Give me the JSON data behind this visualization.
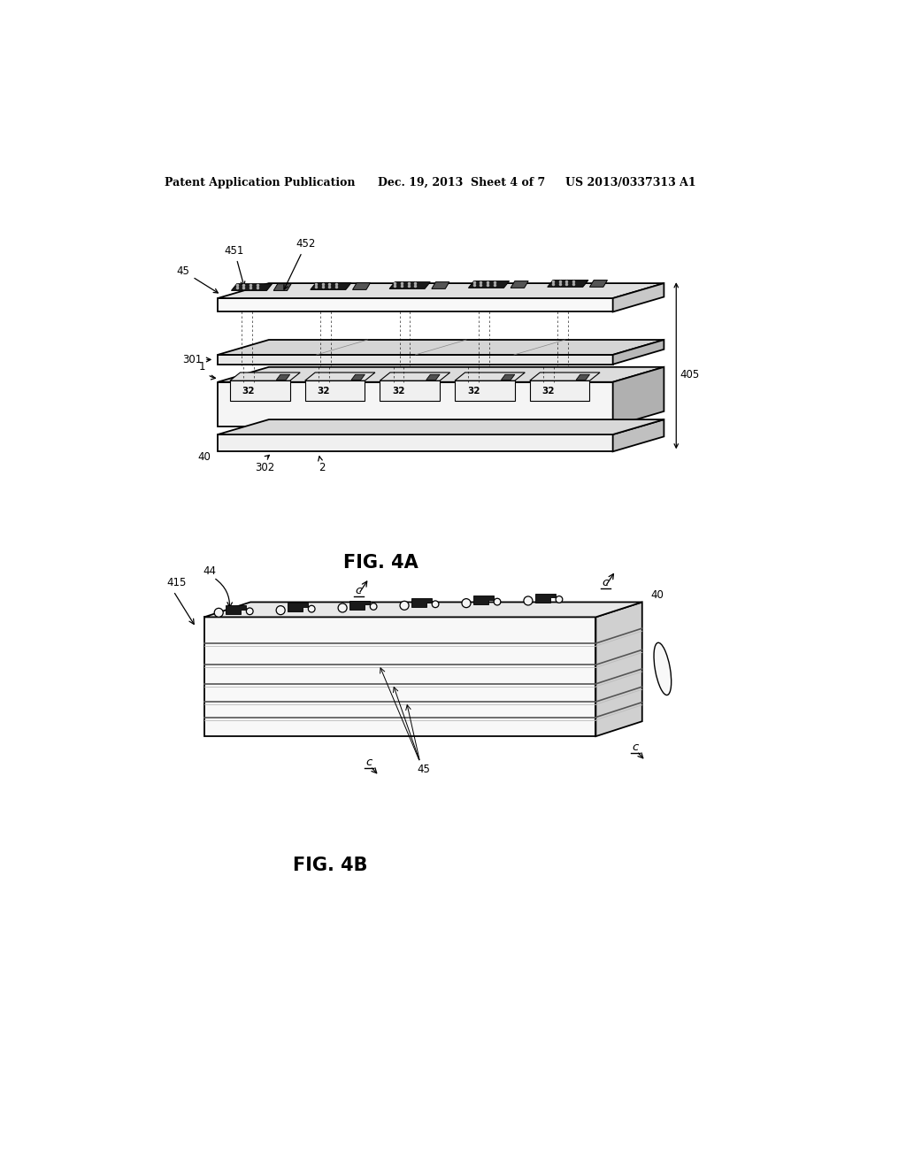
{
  "bg_color": "#ffffff",
  "header_left": "Patent Application Publication",
  "header_mid": "Dec. 19, 2013  Sheet 4 of 7",
  "header_right": "US 2013/0337313 A1",
  "fig4a_label": "FIG. 4A",
  "fig4b_label": "FIG. 4B"
}
